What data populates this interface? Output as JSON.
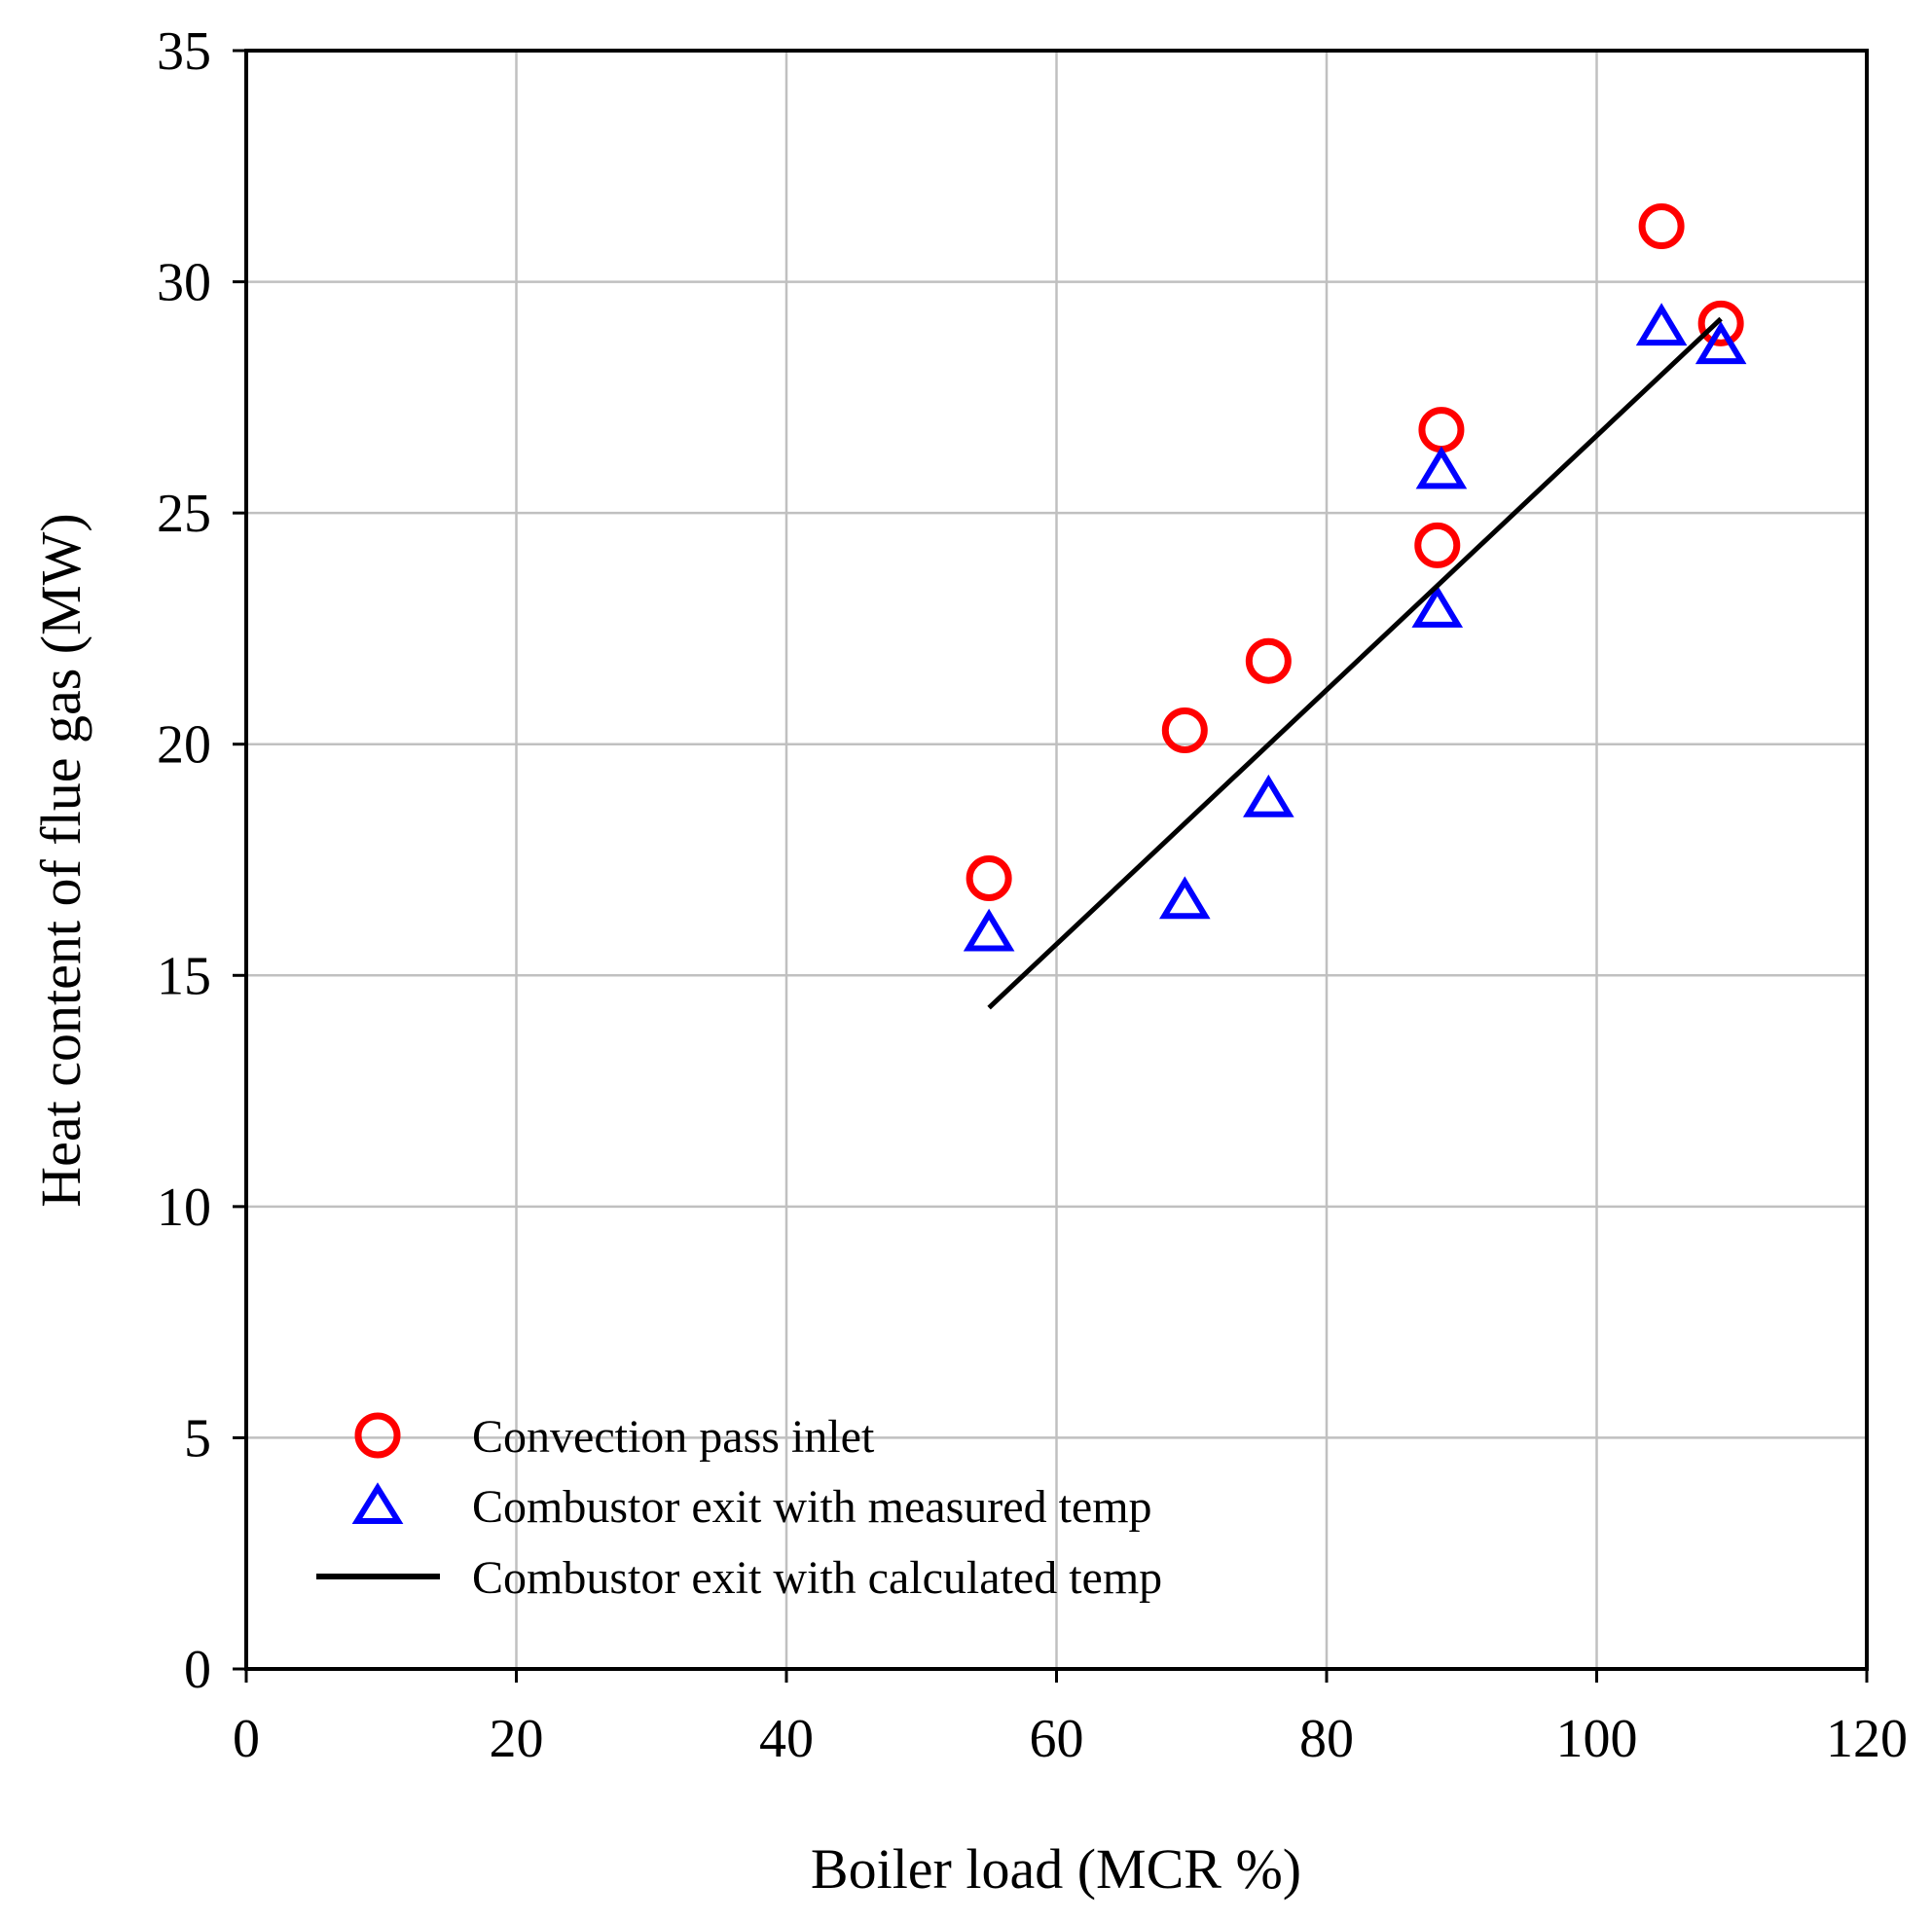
{
  "chart_data": {
    "type": "scatter",
    "title": "",
    "xlabel": "Boiler load (MCR %)",
    "ylabel": "Heat content of flue gas (MW)",
    "xlim": [
      0,
      120
    ],
    "ylim": [
      0,
      35
    ],
    "xticks": [
      0,
      20,
      40,
      60,
      80,
      100,
      120
    ],
    "yticks": [
      0,
      5,
      10,
      15,
      20,
      25,
      30,
      35
    ],
    "grid": true,
    "legend_position": "bottom-left",
    "series": [
      {
        "name": "Convection pass inlet",
        "marker": "circle",
        "color": "#ff0000",
        "points": [
          {
            "x": 55,
            "y": 17.1
          },
          {
            "x": 69.5,
            "y": 20.3
          },
          {
            "x": 75.7,
            "y": 21.8
          },
          {
            "x": 88.2,
            "y": 24.3
          },
          {
            "x": 88.5,
            "y": 26.8
          },
          {
            "x": 104.8,
            "y": 31.2
          },
          {
            "x": 109.2,
            "y": 29.1
          }
        ]
      },
      {
        "name": "Combustor exit with measured temp",
        "marker": "triangle",
        "color": "#0000ff",
        "points": [
          {
            "x": 55,
            "y": 15.9
          },
          {
            "x": 69.5,
            "y": 16.6
          },
          {
            "x": 75.7,
            "y": 18.8
          },
          {
            "x": 88.2,
            "y": 22.9
          },
          {
            "x": 88.5,
            "y": 25.9
          },
          {
            "x": 104.8,
            "y": 29.0
          },
          {
            "x": 109.2,
            "y": 28.6
          }
        ]
      },
      {
        "name": "Combustor exit with calculated temp",
        "marker": "line",
        "color": "#000000",
        "points": [
          {
            "x": 55,
            "y": 14.3
          },
          {
            "x": 109.2,
            "y": 29.2
          }
        ]
      }
    ]
  }
}
